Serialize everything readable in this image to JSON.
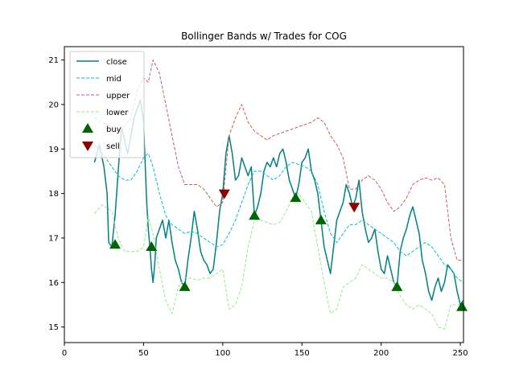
{
  "chart_data": {
    "type": "line",
    "title": "Bollinger Bands w/ Trades for COG",
    "xlabel": "",
    "ylabel": "",
    "xlim": [
      0,
      252
    ],
    "ylim": [
      14.65,
      21.3
    ],
    "xticks": [
      0,
      50,
      100,
      150,
      200,
      250
    ],
    "yticks": [
      15,
      16,
      17,
      18,
      19,
      20,
      21
    ],
    "legend_position": "top-left",
    "grid": false,
    "series": [
      {
        "name": "close",
        "color": "#008080",
        "style": "solid",
        "points": [
          [
            19,
            18.7
          ],
          [
            22,
            19.1
          ],
          [
            25,
            18.6
          ],
          [
            27,
            18.0
          ],
          [
            28,
            16.9
          ],
          [
            30,
            16.8
          ],
          [
            32,
            17.5
          ],
          [
            34,
            18.5
          ],
          [
            36,
            19.5
          ],
          [
            38,
            19.2
          ],
          [
            40,
            18.9
          ],
          [
            42,
            19.3
          ],
          [
            44,
            19.7
          ],
          [
            46,
            19.9
          ],
          [
            48,
            20.1
          ],
          [
            50,
            19.6
          ],
          [
            52,
            17.8
          ],
          [
            53,
            17.2
          ],
          [
            54,
            16.8
          ],
          [
            55,
            16.3
          ],
          [
            56,
            16.0
          ],
          [
            57,
            16.4
          ],
          [
            58,
            17.0
          ],
          [
            60,
            17.2
          ],
          [
            62,
            17.4
          ],
          [
            64,
            17.0
          ],
          [
            66,
            17.4
          ],
          [
            68,
            16.9
          ],
          [
            70,
            16.5
          ],
          [
            72,
            16.3
          ],
          [
            74,
            16.0
          ],
          [
            76,
            15.9
          ],
          [
            78,
            16.5
          ],
          [
            80,
            17.0
          ],
          [
            82,
            17.6
          ],
          [
            84,
            17.2
          ],
          [
            86,
            16.7
          ],
          [
            88,
            16.5
          ],
          [
            90,
            16.4
          ],
          [
            92,
            16.2
          ],
          [
            94,
            16.3
          ],
          [
            96,
            16.9
          ],
          [
            98,
            17.6
          ],
          [
            100,
            18.0
          ],
          [
            102,
            18.9
          ],
          [
            104,
            19.3
          ],
          [
            106,
            18.9
          ],
          [
            108,
            18.3
          ],
          [
            110,
            18.4
          ],
          [
            112,
            18.8
          ],
          [
            114,
            18.6
          ],
          [
            116,
            18.4
          ],
          [
            118,
            18.6
          ],
          [
            120,
            17.5
          ],
          [
            122,
            17.7
          ],
          [
            124,
            18.0
          ],
          [
            126,
            18.5
          ],
          [
            128,
            18.7
          ],
          [
            130,
            18.6
          ],
          [
            132,
            18.8
          ],
          [
            134,
            18.6
          ],
          [
            136,
            18.9
          ],
          [
            138,
            19.0
          ],
          [
            140,
            18.7
          ],
          [
            142,
            18.3
          ],
          [
            144,
            18.1
          ],
          [
            146,
            17.9
          ],
          [
            148,
            18.2
          ],
          [
            150,
            18.7
          ],
          [
            152,
            18.8
          ],
          [
            154,
            19.0
          ],
          [
            156,
            18.5
          ],
          [
            158,
            18.3
          ],
          [
            160,
            18.0
          ],
          [
            162,
            17.4
          ],
          [
            164,
            16.8
          ],
          [
            166,
            16.5
          ],
          [
            168,
            16.2
          ],
          [
            170,
            16.8
          ],
          [
            172,
            17.4
          ],
          [
            174,
            17.6
          ],
          [
            176,
            17.8
          ],
          [
            178,
            18.2
          ],
          [
            180,
            18.0
          ],
          [
            182,
            17.7
          ],
          [
            184,
            17.9
          ],
          [
            186,
            18.3
          ],
          [
            188,
            17.6
          ],
          [
            190,
            17.2
          ],
          [
            192,
            16.9
          ],
          [
            194,
            17.0
          ],
          [
            196,
            17.2
          ],
          [
            198,
            16.7
          ],
          [
            200,
            16.3
          ],
          [
            202,
            16.2
          ],
          [
            204,
            16.6
          ],
          [
            206,
            16.3
          ],
          [
            208,
            16.0
          ],
          [
            210,
            15.9
          ],
          [
            212,
            16.7
          ],
          [
            214,
            17.0
          ],
          [
            216,
            17.2
          ],
          [
            218,
            17.5
          ],
          [
            220,
            17.7
          ],
          [
            222,
            17.4
          ],
          [
            224,
            17.1
          ],
          [
            226,
            16.5
          ],
          [
            228,
            16.2
          ],
          [
            230,
            15.8
          ],
          [
            232,
            15.6
          ],
          [
            234,
            15.9
          ],
          [
            236,
            16.1
          ],
          [
            238,
            15.8
          ],
          [
            240,
            16.0
          ],
          [
            242,
            16.4
          ],
          [
            244,
            16.3
          ],
          [
            246,
            16.2
          ],
          [
            248,
            15.8
          ],
          [
            250,
            15.5
          ],
          [
            252,
            15.6
          ]
        ]
      },
      {
        "name": "mid",
        "color": "#00bcd4",
        "style": "dashed",
        "points": [
          [
            19,
            19.1
          ],
          [
            24,
            18.9
          ],
          [
            30,
            18.6
          ],
          [
            34,
            18.4
          ],
          [
            38,
            18.3
          ],
          [
            42,
            18.3
          ],
          [
            46,
            18.5
          ],
          [
            50,
            18.8
          ],
          [
            53,
            18.9
          ],
          [
            56,
            18.6
          ],
          [
            60,
            18.0
          ],
          [
            64,
            17.5
          ],
          [
            68,
            17.3
          ],
          [
            72,
            17.2
          ],
          [
            76,
            17.1
          ],
          [
            80,
            17.15
          ],
          [
            84,
            17.1
          ],
          [
            88,
            17.0
          ],
          [
            92,
            16.9
          ],
          [
            96,
            16.8
          ],
          [
            100,
            16.85
          ],
          [
            104,
            17.1
          ],
          [
            108,
            17.4
          ],
          [
            112,
            17.8
          ],
          [
            116,
            18.2
          ],
          [
            120,
            18.5
          ],
          [
            124,
            18.5
          ],
          [
            128,
            18.4
          ],
          [
            132,
            18.3
          ],
          [
            136,
            18.4
          ],
          [
            140,
            18.6
          ],
          [
            144,
            18.7
          ],
          [
            148,
            18.65
          ],
          [
            152,
            18.6
          ],
          [
            156,
            18.5
          ],
          [
            160,
            18.2
          ],
          [
            164,
            17.6
          ],
          [
            168,
            17.1
          ],
          [
            172,
            16.9
          ],
          [
            176,
            17.1
          ],
          [
            180,
            17.3
          ],
          [
            184,
            17.3
          ],
          [
            188,
            17.4
          ],
          [
            192,
            17.3
          ],
          [
            196,
            17.2
          ],
          [
            200,
            17.1
          ],
          [
            204,
            17.0
          ],
          [
            208,
            16.9
          ],
          [
            212,
            16.7
          ],
          [
            216,
            16.6
          ],
          [
            220,
            16.7
          ],
          [
            224,
            16.8
          ],
          [
            228,
            16.9
          ],
          [
            232,
            16.8
          ],
          [
            236,
            16.6
          ],
          [
            240,
            16.4
          ],
          [
            244,
            16.3
          ],
          [
            248,
            16.1
          ],
          [
            252,
            16.0
          ]
        ]
      },
      {
        "name": "upper",
        "color": "#cd5c5c",
        "style": "dashed",
        "points": [
          [
            19,
            19.7
          ],
          [
            24,
            19.6
          ],
          [
            30,
            19.5
          ],
          [
            34,
            19.4
          ],
          [
            38,
            19.5
          ],
          [
            42,
            19.7
          ],
          [
            46,
            20.3
          ],
          [
            50,
            20.6
          ],
          [
            53,
            20.5
          ],
          [
            56,
            21.0
          ],
          [
            60,
            20.7
          ],
          [
            64,
            20.0
          ],
          [
            68,
            19.3
          ],
          [
            72,
            18.6
          ],
          [
            76,
            18.2
          ],
          [
            80,
            18.2
          ],
          [
            84,
            18.2
          ],
          [
            88,
            18.1
          ],
          [
            92,
            17.9
          ],
          [
            96,
            17.7
          ],
          [
            100,
            17.8
          ],
          [
            104,
            19.3
          ],
          [
            108,
            19.7
          ],
          [
            112,
            20.0
          ],
          [
            116,
            19.6
          ],
          [
            120,
            19.4
          ],
          [
            124,
            19.3
          ],
          [
            128,
            19.2
          ],
          [
            132,
            19.3
          ],
          [
            136,
            19.35
          ],
          [
            140,
            19.4
          ],
          [
            144,
            19.45
          ],
          [
            148,
            19.5
          ],
          [
            152,
            19.55
          ],
          [
            156,
            19.6
          ],
          [
            160,
            19.7
          ],
          [
            164,
            19.6
          ],
          [
            168,
            19.3
          ],
          [
            172,
            19.1
          ],
          [
            176,
            18.8
          ],
          [
            180,
            18.1
          ],
          [
            184,
            18.1
          ],
          [
            188,
            18.3
          ],
          [
            192,
            18.4
          ],
          [
            196,
            18.3
          ],
          [
            200,
            18.1
          ],
          [
            204,
            17.8
          ],
          [
            208,
            17.6
          ],
          [
            212,
            17.7
          ],
          [
            216,
            17.9
          ],
          [
            220,
            18.2
          ],
          [
            224,
            18.3
          ],
          [
            228,
            18.35
          ],
          [
            232,
            18.3
          ],
          [
            236,
            18.35
          ],
          [
            240,
            18.2
          ],
          [
            244,
            17.0
          ],
          [
            248,
            16.5
          ],
          [
            252,
            16.5
          ]
        ]
      },
      {
        "name": "lower",
        "color": "#90ee90",
        "style": "dashed",
        "points": [
          [
            19,
            17.55
          ],
          [
            24,
            17.75
          ],
          [
            30,
            17.6
          ],
          [
            34,
            17.0
          ],
          [
            38,
            16.7
          ],
          [
            42,
            16.7
          ],
          [
            46,
            16.7
          ],
          [
            50,
            16.8
          ],
          [
            53,
            17.5
          ],
          [
            56,
            17.1
          ],
          [
            60,
            16.3
          ],
          [
            64,
            15.6
          ],
          [
            68,
            15.3
          ],
          [
            72,
            15.9
          ],
          [
            76,
            16.1
          ],
          [
            80,
            16.1
          ],
          [
            84,
            16.05
          ],
          [
            88,
            16.1
          ],
          [
            92,
            16.1
          ],
          [
            96,
            16.2
          ],
          [
            100,
            16.3
          ],
          [
            104,
            15.4
          ],
          [
            108,
            15.5
          ],
          [
            112,
            15.9
          ],
          [
            116,
            16.8
          ],
          [
            120,
            17.4
          ],
          [
            124,
            17.4
          ],
          [
            128,
            17.35
          ],
          [
            132,
            17.3
          ],
          [
            136,
            17.35
          ],
          [
            140,
            17.6
          ],
          [
            144,
            17.9
          ],
          [
            148,
            18.0
          ],
          [
            152,
            17.8
          ],
          [
            156,
            17.6
          ],
          [
            160,
            16.8
          ],
          [
            164,
            16.0
          ],
          [
            168,
            15.3
          ],
          [
            172,
            15.4
          ],
          [
            176,
            15.9
          ],
          [
            180,
            16.0
          ],
          [
            184,
            16.1
          ],
          [
            188,
            16.4
          ],
          [
            192,
            16.3
          ],
          [
            196,
            16.2
          ],
          [
            200,
            16.1
          ],
          [
            204,
            16.1
          ],
          [
            208,
            16.0
          ],
          [
            212,
            15.7
          ],
          [
            216,
            15.5
          ],
          [
            220,
            15.4
          ],
          [
            224,
            15.5
          ],
          [
            228,
            15.4
          ],
          [
            232,
            15.3
          ],
          [
            236,
            15.0
          ],
          [
            240,
            14.95
          ],
          [
            244,
            15.5
          ],
          [
            248,
            15.5
          ],
          [
            252,
            15.5
          ]
        ]
      }
    ],
    "markers": [
      {
        "name": "buy",
        "color": "#006400",
        "shape": "triangle-up",
        "points": [
          [
            32,
            16.85
          ],
          [
            55,
            16.8
          ],
          [
            76,
            15.9
          ],
          [
            120,
            17.5
          ],
          [
            146,
            17.9
          ],
          [
            162,
            17.4
          ],
          [
            210,
            15.9
          ],
          [
            251,
            15.45
          ]
        ]
      },
      {
        "name": "sell",
        "color": "#8b0000",
        "shape": "triangle-down",
        "points": [
          [
            101,
            18.0
          ],
          [
            183,
            17.7
          ]
        ]
      }
    ]
  }
}
